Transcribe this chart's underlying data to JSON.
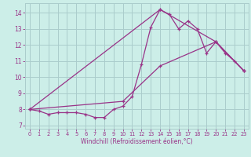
{
  "xlabel": "Windchill (Refroidissement éolien,°C)",
  "bg_color": "#cceee8",
  "grid_color": "#aacccc",
  "line_color": "#993388",
  "xlim": [
    -0.5,
    23.5
  ],
  "ylim": [
    6.8,
    14.6
  ],
  "yticks": [
    7,
    8,
    9,
    10,
    11,
    12,
    13,
    14
  ],
  "xticks": [
    0,
    1,
    2,
    3,
    4,
    5,
    6,
    7,
    8,
    9,
    10,
    11,
    12,
    13,
    14,
    15,
    16,
    17,
    18,
    19,
    20,
    21,
    22,
    23
  ],
  "line1_x": [
    0,
    1,
    2,
    3,
    4,
    5,
    6,
    7,
    8,
    9,
    10,
    11,
    12,
    13,
    14,
    15,
    16,
    17,
    18,
    19,
    20,
    21,
    22,
    23
  ],
  "line1_y": [
    8.0,
    7.9,
    7.7,
    7.8,
    7.8,
    7.8,
    7.7,
    7.5,
    7.5,
    8.0,
    8.2,
    8.8,
    10.8,
    13.1,
    14.2,
    13.9,
    13.0,
    13.5,
    13.0,
    11.5,
    12.2,
    11.5,
    11.0,
    10.4
  ],
  "line2_x": [
    0,
    10,
    14,
    20,
    23
  ],
  "line2_y": [
    8.0,
    8.5,
    10.7,
    12.2,
    10.4
  ],
  "line3_x": [
    0,
    14,
    20,
    23
  ],
  "line3_y": [
    8.0,
    14.2,
    12.2,
    10.4
  ],
  "xlabel_fontsize": 5.5,
  "xtick_fontsize": 4.8,
  "ytick_fontsize": 5.5,
  "linewidth": 0.9,
  "markersize": 3.0
}
